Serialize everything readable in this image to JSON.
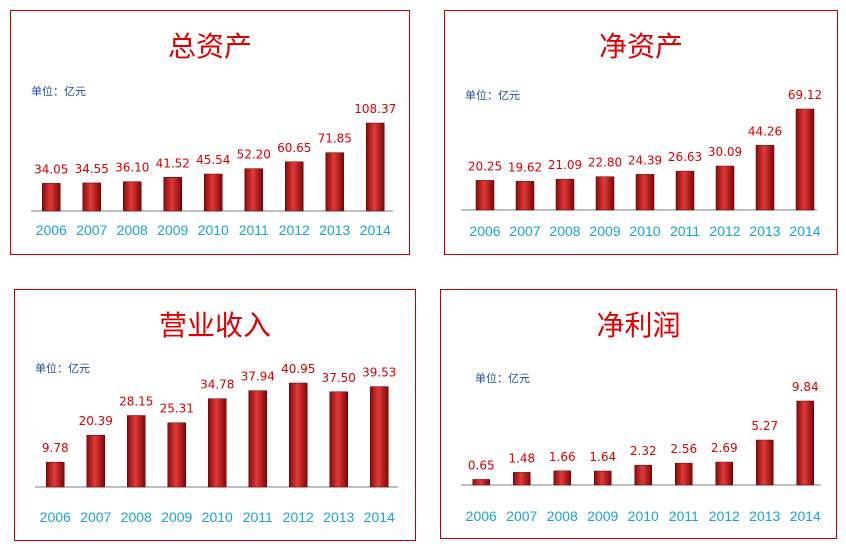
{
  "chart_data": [
    {
      "type": "bar",
      "title": "总资产",
      "unit": "单位：亿元",
      "categories": [
        "2006",
        "2007",
        "2008",
        "2009",
        "2010",
        "2011",
        "2012",
        "2013",
        "2014"
      ],
      "values": [
        34.05,
        34.55,
        36.1,
        41.52,
        45.54,
        52.2,
        60.65,
        71.85,
        108.37
      ],
      "labels": [
        "34.05",
        "34.55",
        "36.10",
        "41.52",
        "45.54",
        "52.20",
        "60.65",
        "71.85",
        "108.37"
      ],
      "ylim": [
        0,
        108.37
      ]
    },
    {
      "type": "bar",
      "title": "净资产",
      "unit": "单位：亿元",
      "categories": [
        "2006",
        "2007",
        "2008",
        "2009",
        "2010",
        "2011",
        "2012",
        "2013",
        "2014"
      ],
      "values": [
        20.25,
        19.62,
        21.09,
        22.8,
        24.39,
        26.63,
        30.09,
        44.26,
        69.12
      ],
      "labels": [
        "20.25",
        "19.62",
        "21.09",
        "22.80",
        "24.39",
        "26.63",
        "30.09",
        "44.26",
        "69.12"
      ],
      "ylim": [
        0,
        69.12
      ]
    },
    {
      "type": "bar",
      "title": "营业收入",
      "unit": "单位：亿元",
      "categories": [
        "2006",
        "2007",
        "2008",
        "2009",
        "2010",
        "2011",
        "2012",
        "2013",
        "2014"
      ],
      "values": [
        9.78,
        20.39,
        28.15,
        25.31,
        34.78,
        37.94,
        40.95,
        37.5,
        39.53
      ],
      "labels": [
        "9.78",
        "20.39",
        "28.15",
        "25.31",
        "34.78",
        "37.94",
        "40.95",
        "37.50",
        "39.53"
      ],
      "ylim": [
        0,
        40.95
      ]
    },
    {
      "type": "bar",
      "title": "净利润",
      "unit": "单位：亿元",
      "categories": [
        "2006",
        "2007",
        "2008",
        "2009",
        "2010",
        "2011",
        "2012",
        "2013",
        "2014"
      ],
      "values": [
        0.65,
        1.48,
        1.66,
        1.64,
        2.32,
        2.56,
        2.69,
        5.27,
        9.84
      ],
      "labels": [
        "0.65",
        "1.48",
        "1.66",
        "1.64",
        "2.32",
        "2.56",
        "2.69",
        "5.27",
        "9.84"
      ],
      "ylim": [
        0,
        9.84
      ]
    }
  ]
}
